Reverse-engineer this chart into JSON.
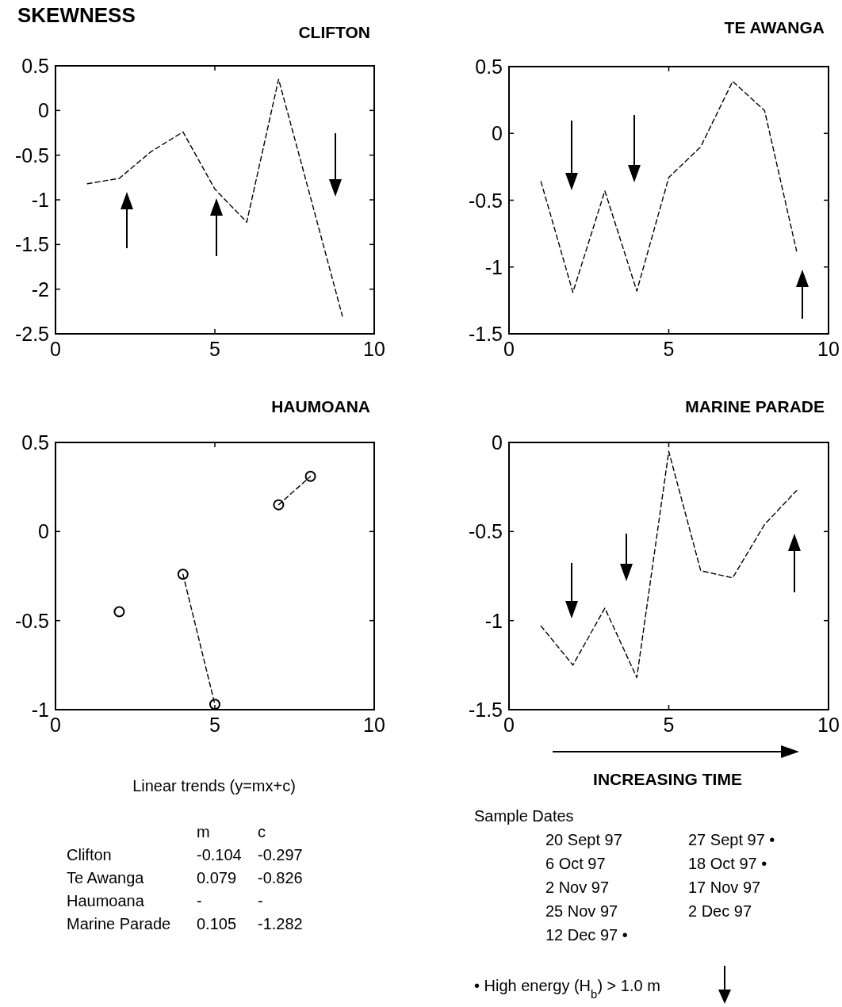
{
  "chart_data": [
    {
      "type": "line",
      "title": "CLIFTON",
      "ylabel": "SKEWNESS",
      "x": [
        1,
        2,
        3,
        4,
        5,
        6,
        7,
        8,
        9
      ],
      "series": [
        {
          "color": "#000000",
          "values": [
            -0.82,
            -0.76,
            -0.46,
            -0.24,
            -0.88,
            -1.25,
            0.35,
            -0.97,
            -2.3
          ]
        }
      ],
      "xlim": [
        0,
        10
      ],
      "xticks": [
        0,
        5,
        10
      ],
      "ylim": [
        -2.5,
        0.5
      ],
      "yticks": [
        -2.5,
        -2,
        -1.5,
        -1,
        -0.5,
        0,
        0.5
      ],
      "grid": false,
      "line_style": "dashed",
      "marker": "none"
    },
    {
      "type": "line",
      "title": "TE AWANGA",
      "x": [
        1,
        2,
        3,
        4,
        5,
        6,
        7,
        8,
        9
      ],
      "series": [
        {
          "color": "#000000",
          "values": [
            -0.36,
            -1.19,
            -0.43,
            -1.18,
            -0.33,
            -0.1,
            0.39,
            0.17,
            -0.88
          ]
        }
      ],
      "xlim": [
        0,
        10
      ],
      "xticks": [
        0,
        5,
        10
      ],
      "ylim": [
        -1.5,
        0.5
      ],
      "yticks": [
        -1.5,
        -1,
        -0.5,
        0,
        0.5
      ],
      "grid": false,
      "line_style": "dashed",
      "marker": "none"
    },
    {
      "type": "line",
      "title": "HAUMOANA",
      "series": [
        {
          "color": "#000000",
          "x": [
            2
          ],
          "values": [
            -0.45
          ]
        },
        {
          "color": "#000000",
          "x": [
            4,
            5
          ],
          "values": [
            -0.24,
            -0.97
          ]
        },
        {
          "color": "#000000",
          "x": [
            7,
            8
          ],
          "values": [
            0.15,
            0.31
          ]
        }
      ],
      "xlim": [
        0,
        10
      ],
      "xticks": [
        0,
        5,
        10
      ],
      "ylim": [
        -1,
        0.5
      ],
      "yticks": [
        -1,
        -0.5,
        0,
        0.5
      ],
      "grid": false,
      "line_style": "dashed",
      "marker": "circle",
      "annotations": [
        "Linear trends    (y=mx+c)",
        "\tm\tc",
        "Clifton\t-0.104\t-0.297",
        "Te Awanga\t0.079\t-0.826",
        "Haumoana\t-\t-",
        "Marine Parade\t0.105\t-1.282"
      ]
    },
    {
      "type": "line",
      "title": "MARINE PARADE",
      "x": [
        1,
        2,
        3,
        4,
        5,
        6,
        7,
        8,
        9
      ],
      "series": [
        {
          "color": "#000000",
          "values": [
            -1.03,
            -1.25,
            -0.93,
            -1.32,
            -0.05,
            -0.72,
            -0.76,
            -0.46,
            -0.27
          ]
        }
      ],
      "xlim": [
        0,
        10
      ],
      "xticks": [
        0,
        5,
        10
      ],
      "ylim": [
        -1.5,
        0
      ],
      "yticks": [
        -1.5,
        -1,
        -0.5,
        0
      ],
      "grid": false,
      "line_style": "dashed",
      "marker": "none",
      "annotations": [
        "INCREASING TIME",
        "Sample Dates",
        "20 Sept 97\t27 Sept 97 •",
        "6 Oct 97\t18 Oct 97  •",
        "2 Nov 97\t17 Nov 97",
        "25 Nov 97\t2 Dec 97",
        "12 Dec 97  •",
        "• High energy (H$_{b}$) > 1.0 m"
      ]
    }
  ]
}
